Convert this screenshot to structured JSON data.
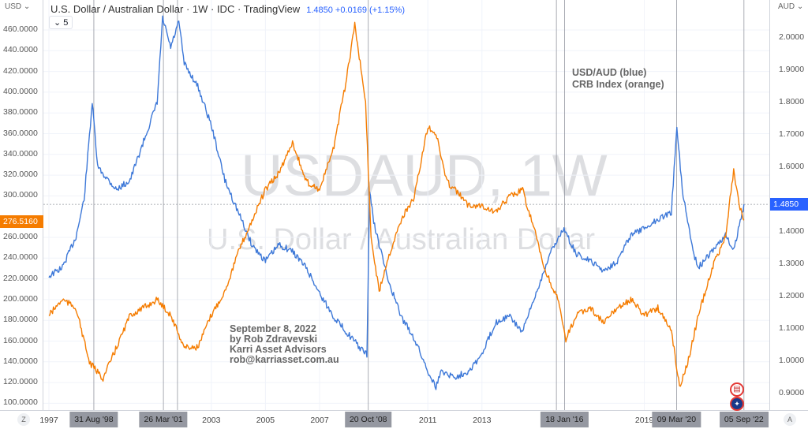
{
  "header": {
    "title": "U.S. Dollar / Australian Dollar · 1W · IDC · TradingView",
    "price": "1.4850",
    "change": "+0.0169 (+1.15%)",
    "interval_badge": "5",
    "left_currency": "USD",
    "right_currency": "AUD"
  },
  "watermark": {
    "symbol": "USDAUD, 1W",
    "description": "U.S. Dollar / Australian Dollar"
  },
  "annotations": {
    "legend": [
      "USD/AUD (blue)",
      "CRB Index (orange)"
    ],
    "note": [
      "September 8, 2022",
      "by Rob Zdravevski",
      "Karri Asset Advisors",
      "rob@karriasset.com.au"
    ]
  },
  "left_axis": {
    "ticks": [
      "460.0000",
      "440.0000",
      "420.0000",
      "400.0000",
      "380.0000",
      "360.0000",
      "340.0000",
      "320.0000",
      "300.0000",
      "260.0000",
      "240.0000",
      "220.0000",
      "200.0000",
      "180.0000",
      "160.0000",
      "140.0000",
      "120.0000",
      "100.0000"
    ],
    "tick_values": [
      460,
      440,
      420,
      400,
      380,
      360,
      340,
      320,
      300,
      260,
      240,
      220,
      200,
      180,
      160,
      140,
      120,
      100
    ],
    "last_label": "276.5160"
  },
  "right_axis": {
    "ticks": [
      "2.0000",
      "1.9000",
      "1.8000",
      "1.7000",
      "1.6000",
      "1.4000",
      "1.3000",
      "1.2000",
      "1.1000",
      "1.0000",
      "0.9000"
    ],
    "tick_values": [
      2.0,
      1.9,
      1.8,
      1.7,
      1.6,
      1.4,
      1.3,
      1.2,
      1.1,
      1.0,
      0.9
    ],
    "last_label": "1.4850"
  },
  "time_axis": {
    "ticks": [
      {
        "label": "1997",
        "year": 1997
      },
      {
        "label": "2003",
        "year": 2003
      },
      {
        "label": "2005",
        "year": 2005
      },
      {
        "label": "2007",
        "year": 2007
      },
      {
        "label": "2011",
        "year": 2011
      },
      {
        "label": "2013",
        "year": 2013
      },
      {
        "label": "2019",
        "year": 2019
      }
    ],
    "markers": [
      {
        "label": "31 Aug '98",
        "year": 1998.66
      },
      {
        "label": "26 Mar '01",
        "year": 2001.23
      },
      {
        "label": "20 Oct '08",
        "year": 2008.8
      },
      {
        "label": "18 Jan '16",
        "year": 2016.05
      },
      {
        "label": "09 Mar '20",
        "year": 2020.19
      },
      {
        "label": "05 Sep '22",
        "year": 2022.68
      }
    ],
    "extra_lines": [
      2001.75,
      2015.75
    ],
    "corner_left": "Z",
    "corner_right": "A"
  },
  "colors": {
    "blue": "#2962ff",
    "orange": "#f57c00"
  },
  "chart_data": {
    "type": "line",
    "series": [
      {
        "name": "USD/AUD (blue)",
        "axis": "right",
        "color": "#3d78d8",
        "points": [
          [
            1997,
            1.263
          ],
          [
            1997.5,
            1.29
          ],
          [
            1998,
            1.385
          ],
          [
            1998.3,
            1.5
          ],
          [
            1998.6,
            1.8
          ],
          [
            1998.8,
            1.6
          ],
          [
            1999.5,
            1.53
          ],
          [
            2000,
            1.56
          ],
          [
            2000.5,
            1.68
          ],
          [
            2001,
            1.8
          ],
          [
            2001.2,
            2.06
          ],
          [
            2001.5,
            1.97
          ],
          [
            2001.8,
            2.05
          ],
          [
            2002,
            1.92
          ],
          [
            2002.5,
            1.85
          ],
          [
            2003,
            1.73
          ],
          [
            2003.5,
            1.56
          ],
          [
            2004,
            1.46
          ],
          [
            2004.5,
            1.36
          ],
          [
            2005,
            1.31
          ],
          [
            2005.5,
            1.36
          ],
          [
            2006,
            1.34
          ],
          [
            2006.5,
            1.29
          ],
          [
            2007,
            1.21
          ],
          [
            2007.5,
            1.14
          ],
          [
            2008,
            1.09
          ],
          [
            2008.5,
            1.04
          ],
          [
            2008.75,
            1.02
          ],
          [
            2008.85,
            1.53
          ],
          [
            2009,
            1.43
          ],
          [
            2009.5,
            1.26
          ],
          [
            2010,
            1.14
          ],
          [
            2010.5,
            1.07
          ],
          [
            2011,
            0.97
          ],
          [
            2011.3,
            0.92
          ],
          [
            2011.5,
            0.97
          ],
          [
            2012,
            0.95
          ],
          [
            2012.5,
            0.97
          ],
          [
            2013,
            1.02
          ],
          [
            2013.5,
            1.12
          ],
          [
            2014,
            1.14
          ],
          [
            2014.5,
            1.09
          ],
          [
            2015,
            1.21
          ],
          [
            2015.5,
            1.33
          ],
          [
            2016,
            1.41
          ],
          [
            2016.5,
            1.33
          ],
          [
            2017,
            1.31
          ],
          [
            2017.5,
            1.28
          ],
          [
            2018,
            1.31
          ],
          [
            2018.5,
            1.39
          ],
          [
            2019,
            1.41
          ],
          [
            2019.5,
            1.44
          ],
          [
            2020,
            1.46
          ],
          [
            2020.2,
            1.73
          ],
          [
            2020.4,
            1.53
          ],
          [
            2020.8,
            1.34
          ],
          [
            2021,
            1.29
          ],
          [
            2021.5,
            1.34
          ],
          [
            2022,
            1.39
          ],
          [
            2022.3,
            1.34
          ],
          [
            2022.68,
            1.485
          ]
        ]
      },
      {
        "name": "CRB Index (orange)",
        "axis": "left",
        "color": "#f57c00",
        "points": [
          [
            1997,
            185
          ],
          [
            1997.5,
            200
          ],
          [
            1998,
            192
          ],
          [
            1998.5,
            139
          ],
          [
            1999,
            124
          ],
          [
            1999.5,
            154
          ],
          [
            2000,
            185
          ],
          [
            2000.5,
            192
          ],
          [
            2001,
            200
          ],
          [
            2001.5,
            185
          ],
          [
            2002,
            154
          ],
          [
            2002.5,
            154
          ],
          [
            2003,
            185
          ],
          [
            2003.5,
            208
          ],
          [
            2004,
            246
          ],
          [
            2004.5,
            276
          ],
          [
            2005,
            306
          ],
          [
            2005.5,
            322
          ],
          [
            2006,
            352
          ],
          [
            2006.5,
            314
          ],
          [
            2007,
            306
          ],
          [
            2007.5,
            344
          ],
          [
            2008,
            413
          ],
          [
            2008.3,
            466
          ],
          [
            2008.7,
            390
          ],
          [
            2008.9,
            261
          ],
          [
            2009.2,
            208
          ],
          [
            2009.5,
            238
          ],
          [
            2010,
            276
          ],
          [
            2010.5,
            299
          ],
          [
            2011,
            367
          ],
          [
            2011.3,
            360
          ],
          [
            2011.7,
            314
          ],
          [
            2012,
            306
          ],
          [
            2012.5,
            291
          ],
          [
            2013,
            291
          ],
          [
            2013.5,
            284
          ],
          [
            2014,
            299
          ],
          [
            2014.5,
            306
          ],
          [
            2015,
            261
          ],
          [
            2015.3,
            230
          ],
          [
            2015.8,
            200
          ],
          [
            2016.1,
            162
          ],
          [
            2016.5,
            185
          ],
          [
            2017,
            192
          ],
          [
            2017.5,
            177
          ],
          [
            2018,
            192
          ],
          [
            2018.5,
            200
          ],
          [
            2019,
            185
          ],
          [
            2019.5,
            192
          ],
          [
            2020,
            170
          ],
          [
            2020.3,
            116
          ],
          [
            2020.6,
            139
          ],
          [
            2021,
            185
          ],
          [
            2021.5,
            230
          ],
          [
            2022,
            261
          ],
          [
            2022.3,
            325
          ],
          [
            2022.5,
            291
          ],
          [
            2022.68,
            276.5
          ]
        ]
      }
    ],
    "xlim": [
      1996.8,
      2023.7
    ],
    "ylim_left": [
      100,
      460
    ],
    "ylim_right": [
      0.9,
      2.0
    ]
  }
}
